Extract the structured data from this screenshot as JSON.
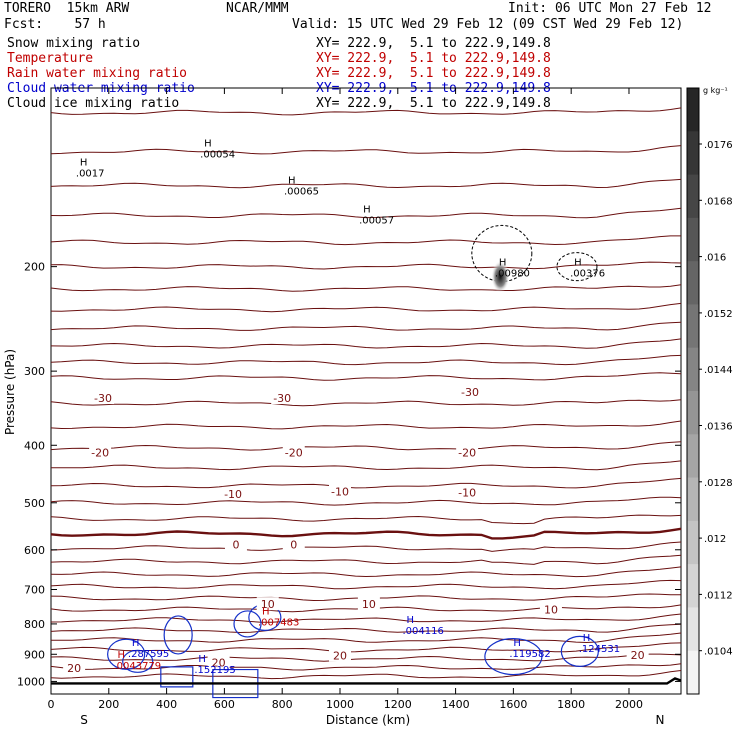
{
  "header": {
    "model": "TORERO  15km ARW",
    "org": "NCAR/MMM",
    "init": "Init: 06 UTC Mon 27 Feb 12",
    "fcst": "Fcst:    57 h",
    "valid": "Valid: 15 UTC Wed 29 Feb 12 (09 CST Wed 29 Feb 12)"
  },
  "fields": [
    {
      "name": "Snow mixing ratio",
      "xy": "XY= 222.9,  5.1 to 222.9,149.8",
      "color": "#000000"
    },
    {
      "name": "Temperature",
      "xy": "XY= 222.9,  5.1 to 222.9,149.8",
      "color": "#c00000"
    },
    {
      "name": "Rain water mixing ratio",
      "xy": "XY= 222.9,  5.1 to 222.9,149.8",
      "color": "#c00000"
    },
    {
      "name": "Cloud water mixing ratio",
      "xy": "XY= 222.9,  5.1 to 222.9,149.8",
      "color": "#0000cc"
    },
    {
      "name": "Cloud ice mixing ratio",
      "xy": "XY= 222.9,  5.1 to 222.9,149.8",
      "color": "#000000"
    }
  ],
  "chart_data": {
    "type": "cross-section",
    "xlabel": "Distance (km)",
    "ylabel": "Pressure (hPa)",
    "xlim": [
      0,
      2180
    ],
    "ylim": [
      1050,
      100
    ],
    "x_ticks": [
      0,
      200,
      400,
      600,
      800,
      1000,
      1200,
      1400,
      1600,
      1800,
      2000
    ],
    "y_ticks": [
      200,
      300,
      400,
      500,
      600,
      700,
      800,
      900,
      1000
    ],
    "left_end": "S",
    "right_end": "N",
    "colorbar": {
      "unit": "g kg⁻¹",
      "labels": [
        ".0176",
        ".0168",
        ".016",
        ".0152",
        ".0144",
        ".0136",
        ".0128",
        ".012",
        ".0112",
        ".0104"
      ]
    },
    "temperature_labels": [
      {
        "x": 180,
        "p": 333,
        "text": "-30"
      },
      {
        "x": 800,
        "p": 333,
        "text": "-30"
      },
      {
        "x": 1450,
        "p": 325,
        "text": "-30"
      },
      {
        "x": 170,
        "p": 411,
        "text": "-20"
      },
      {
        "x": 840,
        "p": 411,
        "text": "-20"
      },
      {
        "x": 1440,
        "p": 411,
        "text": "-20"
      },
      {
        "x": 630,
        "p": 483,
        "text": "-10"
      },
      {
        "x": 1000,
        "p": 479,
        "text": "-10"
      },
      {
        "x": 1440,
        "p": 480,
        "text": "-10"
      },
      {
        "x": 640,
        "p": 588,
        "text": "0"
      },
      {
        "x": 840,
        "p": 588,
        "text": "0"
      },
      {
        "x": 750,
        "p": 741,
        "text": "10"
      },
      {
        "x": 1100,
        "p": 741,
        "text": "10"
      },
      {
        "x": 1730,
        "p": 757,
        "text": "10"
      },
      {
        "x": 1000,
        "p": 904,
        "text": "20"
      },
      {
        "x": 2030,
        "p": 902,
        "text": "20"
      },
      {
        "x": 580,
        "p": 930,
        "text": "20"
      },
      {
        "x": 80,
        "p": 950,
        "text": "20"
      }
    ],
    "maxima": [
      {
        "x": 530,
        "p": 130,
        "text": ".00054",
        "color": "#000000"
      },
      {
        "x": 820,
        "p": 150,
        "text": ".00065",
        "color": "#000000"
      },
      {
        "x": 1080,
        "p": 168,
        "text": ".00057",
        "color": "#000000"
      },
      {
        "x": 1550,
        "p": 206,
        "text": ".00980",
        "color": "#000000"
      },
      {
        "x": 1810,
        "p": 206,
        "text": ".00376",
        "color": "#000000"
      },
      {
        "x": 100,
        "p": 140,
        "text": ".0017",
        "color": "#000000"
      },
      {
        "x": 730,
        "p": 798,
        "text": ".007483",
        "color": "#c00000"
      },
      {
        "x": 1230,
        "p": 826,
        "text": ".004116",
        "color": "#0000cc"
      },
      {
        "x": 280,
        "p": 902,
        "text": ".287595",
        "color": "#0000cc"
      },
      {
        "x": 230,
        "p": 945,
        "text": ".0043779",
        "color": "#c00000"
      },
      {
        "x": 510,
        "p": 960,
        "text": ".152195",
        "color": "#0000cc"
      },
      {
        "x": 1600,
        "p": 902,
        "text": ".119582",
        "color": "#0000cc"
      },
      {
        "x": 1840,
        "p": 885,
        "text": ".124531",
        "color": "#0000cc"
      }
    ]
  }
}
